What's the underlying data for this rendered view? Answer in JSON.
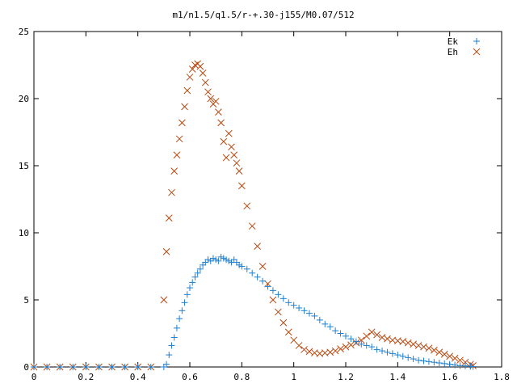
{
  "chart_data": {
    "type": "scatter",
    "title": "m1/n1.5/q1.5/r-+.30-j155/M0.07/512",
    "xlabel": "",
    "ylabel": "",
    "xlim": [
      0,
      1.8
    ],
    "ylim": [
      0,
      25
    ],
    "x_ticks": [
      "0",
      "0.2",
      "0.4",
      "0.6",
      "0.8",
      "1",
      "1.2",
      "1.4",
      "1.6",
      "1.8"
    ],
    "y_ticks": [
      "0",
      "5",
      "10",
      "15",
      "20",
      "25"
    ],
    "grid": false,
    "legend_position": "top-right",
    "series": [
      {
        "name": "Ek",
        "marker": "plus",
        "color": "#1f7fd0",
        "x": [
          0.0,
          0.05,
          0.1,
          0.15,
          0.2,
          0.25,
          0.3,
          0.35,
          0.4,
          0.45,
          0.5,
          0.51,
          0.52,
          0.53,
          0.54,
          0.55,
          0.56,
          0.57,
          0.58,
          0.59,
          0.6,
          0.61,
          0.62,
          0.63,
          0.64,
          0.65,
          0.66,
          0.67,
          0.68,
          0.69,
          0.7,
          0.71,
          0.72,
          0.73,
          0.74,
          0.75,
          0.76,
          0.77,
          0.78,
          0.79,
          0.8,
          0.82,
          0.84,
          0.86,
          0.88,
          0.9,
          0.92,
          0.94,
          0.96,
          0.98,
          1.0,
          1.02,
          1.04,
          1.06,
          1.08,
          1.1,
          1.12,
          1.14,
          1.16,
          1.18,
          1.2,
          1.22,
          1.24,
          1.26,
          1.28,
          1.3,
          1.32,
          1.34,
          1.36,
          1.38,
          1.4,
          1.42,
          1.44,
          1.46,
          1.48,
          1.5,
          1.52,
          1.54,
          1.56,
          1.58,
          1.6,
          1.62,
          1.64,
          1.66,
          1.68,
          1.69
        ],
        "y": [
          0,
          0,
          0,
          0,
          0,
          0,
          0,
          0,
          0,
          0,
          0,
          0.2,
          0.9,
          1.6,
          2.2,
          2.9,
          3.6,
          4.2,
          4.8,
          5.4,
          5.9,
          6.3,
          6.7,
          7.0,
          7.3,
          7.6,
          7.8,
          8.0,
          7.9,
          8.1,
          8.0,
          7.9,
          8.2,
          8.1,
          8.0,
          7.9,
          7.8,
          8.0,
          7.8,
          7.6,
          7.5,
          7.3,
          7.0,
          6.7,
          6.4,
          6.0,
          5.7,
          5.4,
          5.1,
          4.8,
          4.6,
          4.4,
          4.2,
          4.0,
          3.8,
          3.5,
          3.2,
          3.0,
          2.7,
          2.5,
          2.3,
          2.1,
          1.9,
          1.7,
          1.6,
          1.5,
          1.3,
          1.2,
          1.1,
          1.0,
          0.9,
          0.8,
          0.7,
          0.6,
          0.5,
          0.45,
          0.4,
          0.35,
          0.3,
          0.25,
          0.2,
          0.15,
          0.1,
          0.08,
          0.05,
          0.03
        ]
      },
      {
        "name": "Eh",
        "marker": "cross",
        "color": "#b84a12",
        "x": [
          0.0,
          0.05,
          0.1,
          0.15,
          0.2,
          0.25,
          0.3,
          0.35,
          0.4,
          0.45,
          0.5,
          0.51,
          0.52,
          0.53,
          0.54,
          0.55,
          0.56,
          0.57,
          0.58,
          0.59,
          0.6,
          0.61,
          0.62,
          0.63,
          0.64,
          0.65,
          0.66,
          0.67,
          0.68,
          0.69,
          0.7,
          0.71,
          0.72,
          0.73,
          0.74,
          0.75,
          0.76,
          0.77,
          0.78,
          0.79,
          0.8,
          0.82,
          0.84,
          0.86,
          0.88,
          0.9,
          0.92,
          0.94,
          0.96,
          0.98,
          1.0,
          1.02,
          1.04,
          1.06,
          1.08,
          1.1,
          1.12,
          1.14,
          1.16,
          1.18,
          1.2,
          1.22,
          1.24,
          1.26,
          1.28,
          1.3,
          1.32,
          1.34,
          1.36,
          1.38,
          1.4,
          1.42,
          1.44,
          1.46,
          1.48,
          1.5,
          1.52,
          1.54,
          1.56,
          1.58,
          1.6,
          1.62,
          1.64,
          1.66,
          1.68,
          1.69
        ],
        "y": [
          0,
          0,
          0,
          0,
          0,
          0,
          0,
          0,
          0,
          0,
          5.0,
          8.6,
          11.1,
          13.0,
          14.6,
          15.8,
          17.0,
          18.2,
          19.4,
          20.6,
          21.6,
          22.2,
          22.5,
          22.6,
          22.4,
          21.9,
          21.2,
          20.5,
          20.0,
          19.6,
          19.8,
          19.0,
          18.2,
          16.8,
          15.6,
          17.4,
          16.4,
          15.8,
          15.2,
          14.6,
          13.5,
          12.0,
          10.5,
          9.0,
          7.5,
          6.2,
          5.0,
          4.1,
          3.3,
          2.6,
          2.0,
          1.6,
          1.3,
          1.15,
          1.05,
          1.0,
          1.05,
          1.1,
          1.2,
          1.35,
          1.5,
          1.65,
          1.8,
          2.0,
          2.3,
          2.6,
          2.4,
          2.2,
          2.1,
          2.0,
          1.95,
          1.9,
          1.8,
          1.7,
          1.6,
          1.5,
          1.4,
          1.25,
          1.1,
          0.95,
          0.8,
          0.65,
          0.5,
          0.35,
          0.2,
          0.1
        ]
      }
    ]
  }
}
